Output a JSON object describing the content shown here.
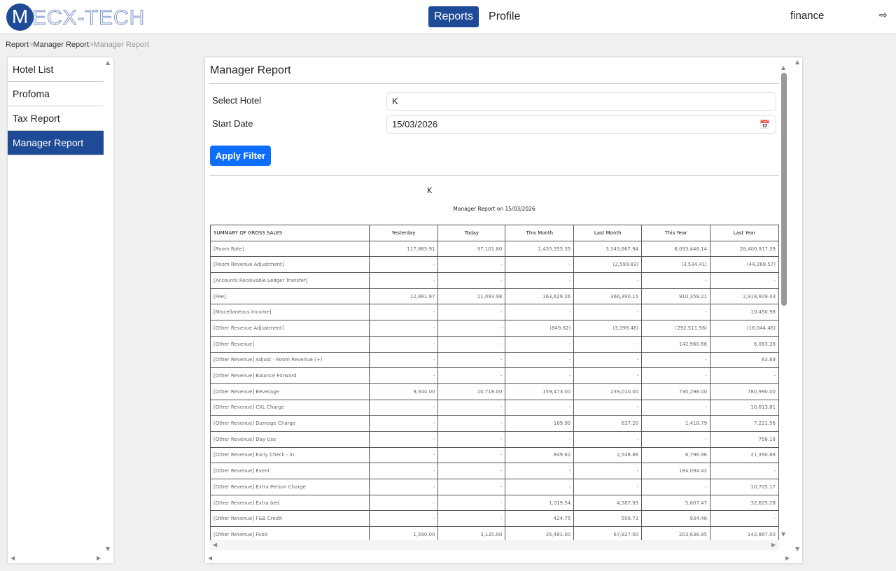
{
  "header": {
    "logo_letter": "M",
    "logo_text": "ECX-TECH",
    "nav": [
      "Reports",
      "Profile"
    ],
    "user": "finance"
  },
  "breadcrumb": [
    "Report",
    "Manager Report",
    "Manager Report"
  ],
  "sidebar": {
    "items": [
      "Hotel List",
      "Profoma",
      "Tax Report",
      "Manager Report"
    ]
  },
  "main": {
    "title": "Manager Report",
    "hotel_label": "Select Hotel",
    "hotel_value": "K",
    "date_label": "Start Date",
    "date_value": "15/03/2026",
    "apply": "Apply Filter",
    "hotel_name": "K",
    "report_title": "Manager Report on 15/03/2026"
  },
  "table": {
    "headers": [
      "SUMMARY OF GROSS SALES",
      "Yesterday",
      "Today",
      "This Month",
      "Last Month",
      "This Year",
      "Last Year"
    ],
    "rows": [
      [
        "[Room Rate]",
        "117,885.91",
        "97,101.80",
        "1,435,355.35",
        "3,343,667.94",
        "8,093,448.14",
        "28,400,917.39"
      ],
      [
        "[Room Revenue Adjustment]",
        "-",
        "-",
        "-",
        "(2,599.83)",
        "(3,534.41)",
        "(44,269.57)"
      ],
      [
        "[Accounts Receivable Ledger Transfer]",
        "-",
        "-",
        "-",
        "-",
        "-",
        "-"
      ],
      [
        "[Fee]",
        "12,881.97",
        "11,093.98",
        "163,629.26",
        "366,390.15",
        "910,359.21",
        "2,918,609.43"
      ],
      [
        "[Miscellaneous Income]",
        "-",
        "-",
        "-",
        "-",
        "-",
        "10,450.98"
      ],
      [
        "[Other Revenue Adjustment]",
        "-",
        "-",
        "(849.62)",
        "(3,398.48)",
        "(292,511.56)",
        "(16,044.46)"
      ],
      [
        "[Other Revenue]",
        "-",
        "-",
        "-",
        "-",
        "142,960.66",
        "6,083.26"
      ],
      [
        "[Other Revenue] Adjust - Room Revenue (+)",
        "-",
        "-",
        "-",
        "-",
        "-",
        "63.89"
      ],
      [
        "[Other Revenue] Balance Forward",
        "-",
        "-",
        "-",
        "-",
        "-",
        "-"
      ],
      [
        "[Other Revenue] Beverage",
        "9,344.00",
        "10,718.00",
        "159,473.00",
        "239,010.00",
        "730,298.00",
        "780,990.00"
      ],
      [
        "[Other Revenue] CXL Charge",
        "-",
        "-",
        "-",
        "-",
        "-",
        "10,613.81"
      ],
      [
        "[Other Revenue] Damage Charge",
        "-",
        "-",
        "169.90",
        "637.20",
        "1,418.79",
        "7,221.56"
      ],
      [
        "[Other Revenue] Day Use",
        "-",
        "-",
        "-",
        "-",
        "-",
        "756.16"
      ],
      [
        "[Other Revenue] Early Check - In",
        "-",
        "-",
        "849.62",
        "2,548.86",
        "6,796.96",
        "21,390.88"
      ],
      [
        "[Other Revenue] Event",
        "-",
        "-",
        "-",
        "-",
        "184,094.42",
        "-"
      ],
      [
        "[Other Revenue] Extra Person Charge",
        "-",
        "-",
        "-",
        "-",
        "-",
        "10,705.17"
      ],
      [
        "[Other Revenue] Extra bed",
        "-",
        "-",
        "1,019.54",
        "4,587.93",
        "5,607.47",
        "32,625.28"
      ],
      [
        "[Other Revenue] F&B Credit",
        "-",
        "-",
        "424.75",
        "509.73",
        "934.48",
        "-"
      ],
      [
        "[Other Revenue] Food",
        "1,590.00",
        "3,120.00",
        "35,481.00",
        "67,827.00",
        "203,638.95",
        "142,887.00"
      ]
    ]
  },
  "colors": {
    "brand": "#1f4a96",
    "apply": "#0d6efd"
  }
}
